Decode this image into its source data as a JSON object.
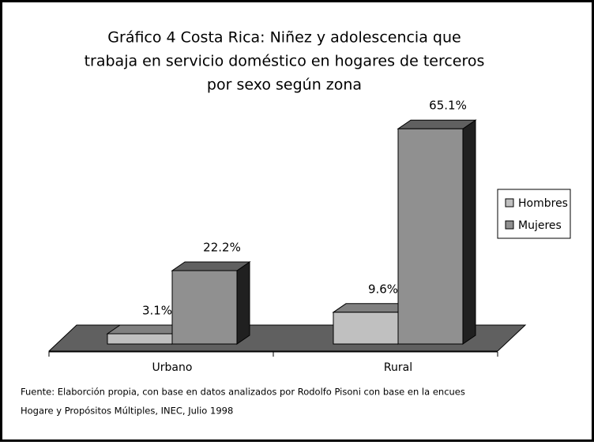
{
  "chart_data": {
    "type": "bar3d",
    "title": [
      "Gráfico 4  Costa Rica:  Niñez y adolescencia que",
      "trabaja en servicio doméstico en hogares de terceros",
      "por sexo según zona"
    ],
    "categories": [
      "Urbano",
      "Rural"
    ],
    "series": [
      {
        "name": "Hombres",
        "color": "#c0c0c0",
        "values": [
          3.1,
          9.6
        ],
        "value_labels": [
          "3.1%",
          "9.6%"
        ]
      },
      {
        "name": "Mujeres",
        "color": "#909090",
        "values": [
          22.2,
          65.1
        ],
        "value_labels": [
          "22.2%",
          "65.1%"
        ]
      }
    ],
    "legend": "right",
    "source": [
      "Fuente:  Elaborción propia, con base en datos analizados  por Rodolfo Pisoni con base en la encues",
      "Hogare  y Propósitos Múltiples, INEC,  Julio 1998"
    ]
  }
}
